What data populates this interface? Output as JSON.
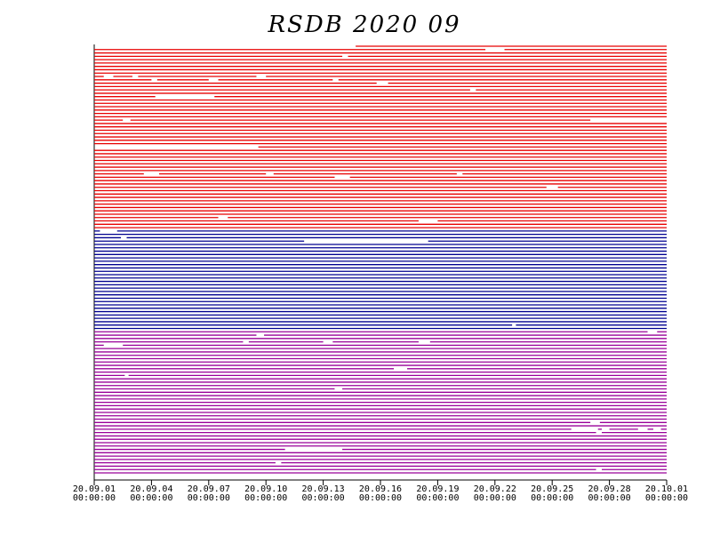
{
  "chart_data": {
    "type": "timeline",
    "title": "RSDB  2020  09",
    "xlim": [
      0,
      30
    ],
    "xticks": [
      {
        "value": 0,
        "label": [
          "20.09.01",
          "00:00:00"
        ]
      },
      {
        "value": 3,
        "label": [
          "20.09.04",
          "00:00:00"
        ]
      },
      {
        "value": 6,
        "label": [
          "20.09.07",
          "00:00:00"
        ]
      },
      {
        "value": 9,
        "label": [
          "20.09.10",
          "00:00:00"
        ]
      },
      {
        "value": 12,
        "label": [
          "20.09.13",
          "00:00:00"
        ]
      },
      {
        "value": 15,
        "label": [
          "20.09.16",
          "00:00:00"
        ]
      },
      {
        "value": 18,
        "label": [
          "20.09.19",
          "00:00:00"
        ]
      },
      {
        "value": 21,
        "label": [
          "20.09.22",
          "00:00:00"
        ]
      },
      {
        "value": 24,
        "label": [
          "20.09.25",
          "00:00:00"
        ]
      },
      {
        "value": 27,
        "label": [
          "20.09.28",
          "00:00:00"
        ]
      },
      {
        "value": 30,
        "label": [
          "20.10.01",
          "00:00:00"
        ]
      }
    ],
    "series": [
      {
        "color": "#e80000",
        "rows": [
          [
            [
              13.7,
              30
            ]
          ],
          [
            [
              0,
              20.5
            ],
            [
              21.5,
              30
            ]
          ],
          [
            [
              0,
              30
            ]
          ],
          [
            [
              0,
              13
            ],
            [
              13.3,
              30
            ]
          ],
          [
            [
              0,
              30
            ]
          ],
          [
            [
              0,
              30
            ]
          ],
          [
            [
              0,
              30
            ]
          ],
          [
            [
              0,
              30
            ]
          ],
          [
            [
              0,
              30
            ]
          ],
          [
            [
              0,
              0.5
            ],
            [
              1,
              2
            ],
            [
              2.3,
              8.5
            ],
            [
              9,
              30
            ]
          ],
          [
            [
              0,
              3
            ],
            [
              3.3,
              6
            ],
            [
              6.5,
              12.5
            ],
            [
              12.8,
              30
            ]
          ],
          [
            [
              0,
              14.8
            ],
            [
              15.4,
              30
            ]
          ],
          [
            [
              0,
              30
            ]
          ],
          [
            [
              0,
              19.7
            ],
            [
              20,
              30
            ]
          ],
          [
            [
              0,
              30
            ]
          ],
          [
            [
              0,
              3.2
            ],
            [
              6.3,
              30
            ]
          ],
          [
            [
              0,
              30
            ]
          ],
          [
            [
              0,
              30
            ]
          ],
          [
            [
              0,
              30
            ]
          ],
          [
            [
              0,
              30
            ]
          ],
          [
            [
              0,
              30
            ]
          ],
          [
            [
              0,
              30
            ]
          ],
          [
            [
              0,
              1.5
            ],
            [
              1.9,
              26
            ]
          ],
          [
            [
              0,
              30
            ]
          ],
          [
            [
              0,
              30
            ]
          ],
          [
            [
              0,
              30
            ]
          ],
          [
            [
              0,
              30
            ]
          ],
          [
            [
              0,
              30
            ]
          ],
          [
            [
              0,
              30
            ]
          ],
          [
            [
              0,
              30
            ]
          ],
          [
            [
              8.6,
              30
            ]
          ],
          [
            [
              0,
              30
            ]
          ],
          [
            [
              0,
              30
            ]
          ],
          [
            [
              0,
              30
            ]
          ],
          [
            [
              0,
              30
            ]
          ],
          [
            [
              0,
              30
            ]
          ],
          [
            [
              0,
              30
            ]
          ],
          [
            [
              0,
              30
            ]
          ],
          [
            [
              0,
              2.6
            ],
            [
              3.4,
              9
            ],
            [
              9.4,
              19
            ],
            [
              19.3,
              30
            ]
          ],
          [
            [
              0,
              12.6
            ],
            [
              13.4,
              30
            ]
          ],
          [
            [
              0,
              30
            ]
          ],
          [
            [
              0,
              30
            ]
          ],
          [
            [
              0,
              23.7
            ],
            [
              24.3,
              30
            ]
          ],
          [
            [
              0,
              30
            ]
          ],
          [
            [
              0,
              30
            ]
          ],
          [
            [
              0,
              30
            ]
          ],
          [
            [
              0,
              30
            ]
          ],
          [
            [
              0,
              30
            ]
          ],
          [
            [
              0,
              30
            ]
          ],
          [
            [
              0,
              30
            ]
          ],
          [
            [
              0,
              30
            ]
          ],
          [
            [
              0,
              6.5
            ],
            [
              7,
              30
            ]
          ],
          [
            [
              0,
              17
            ],
            [
              18,
              30
            ]
          ],
          [
            [
              0,
              30
            ]
          ],
          [
            [
              0,
              30
            ]
          ]
        ]
      },
      {
        "color": "#000090",
        "rows": [
          [
            [
              0,
              0.3
            ],
            [
              1.2,
              30
            ]
          ],
          [
            [
              0,
              30
            ]
          ],
          [
            [
              0,
              1.4
            ],
            [
              1.7,
              30
            ]
          ],
          [
            [
              0,
              11
            ],
            [
              17.5,
              30
            ]
          ],
          [
            [
              0,
              30
            ]
          ],
          [
            [
              0,
              30
            ]
          ],
          [
            [
              0,
              30
            ]
          ],
          [
            [
              0,
              30
            ]
          ],
          [
            [
              0,
              30
            ]
          ],
          [
            [
              0,
              30
            ]
          ],
          [
            [
              0,
              30
            ]
          ],
          [
            [
              0,
              30
            ]
          ],
          [
            [
              0,
              30
            ]
          ],
          [
            [
              0,
              30
            ]
          ],
          [
            [
              0,
              30
            ]
          ],
          [
            [
              0,
              30
            ]
          ],
          [
            [
              0,
              30
            ]
          ],
          [
            [
              0,
              30
            ]
          ],
          [
            [
              0,
              30
            ]
          ],
          [
            [
              0,
              30
            ]
          ],
          [
            [
              0,
              30
            ]
          ],
          [
            [
              0,
              30
            ]
          ],
          [
            [
              0,
              30
            ]
          ],
          [
            [
              0,
              30
            ]
          ],
          [
            [
              0,
              30
            ]
          ],
          [
            [
              0,
              30
            ]
          ],
          [
            [
              0,
              30
            ]
          ],
          [
            [
              0,
              30
            ]
          ],
          [
            [
              0,
              21.9
            ],
            [
              22.1,
              30
            ]
          ],
          [
            [
              0,
              30
            ]
          ]
        ]
      },
      {
        "color": "#990099",
        "rows": [
          [
            [
              0,
              29
            ],
            [
              29.5,
              30
            ]
          ],
          [
            [
              0,
              8.5
            ],
            [
              8.9,
              30
            ]
          ],
          [
            [
              0,
              30
            ]
          ],
          [
            [
              0,
              7.8
            ],
            [
              8.1,
              12
            ],
            [
              12.5,
              17
            ],
            [
              17.6,
              30
            ]
          ],
          [
            [
              0,
              0.5
            ],
            [
              1.5,
              30
            ]
          ],
          [
            [
              0,
              30
            ]
          ],
          [
            [
              0,
              30
            ]
          ],
          [
            [
              0,
              30
            ]
          ],
          [
            [
              0,
              30
            ]
          ],
          [
            [
              0,
              30
            ]
          ],
          [
            [
              0,
              30
            ]
          ],
          [
            [
              0,
              15.7
            ],
            [
              16.4,
              30
            ]
          ],
          [
            [
              0,
              30
            ]
          ],
          [
            [
              0,
              1.6
            ],
            [
              1.8,
              30
            ]
          ],
          [
            [
              0,
              30
            ]
          ],
          [
            [
              0,
              30
            ]
          ],
          [
            [
              0,
              30
            ]
          ],
          [
            [
              0,
              12.6
            ],
            [
              13,
              30
            ]
          ],
          [
            [
              0,
              30
            ]
          ],
          [
            [
              0,
              30
            ]
          ],
          [
            [
              0,
              30
            ]
          ],
          [
            [
              0,
              30
            ]
          ],
          [
            [
              0,
              30
            ]
          ],
          [
            [
              0,
              30
            ]
          ],
          [
            [
              0,
              30
            ]
          ],
          [
            [
              0,
              30
            ]
          ],
          [
            [
              0,
              30
            ]
          ],
          [
            [
              0,
              26
            ],
            [
              26.5,
              30
            ]
          ],
          [
            [
              0,
              30
            ]
          ],
          [
            [
              0,
              25
            ],
            [
              26.4,
              26.6
            ],
            [
              27,
              28.5
            ],
            [
              29,
              29.3
            ],
            [
              29.7,
              30
            ]
          ],
          [
            [
              0,
              26.3
            ],
            [
              26.6,
              30
            ]
          ],
          [
            [
              0,
              30
            ]
          ],
          [
            [
              0,
              30
            ]
          ],
          [
            [
              0,
              30
            ]
          ],
          [
            [
              0,
              30
            ]
          ],
          [
            [
              0,
              10
            ],
            [
              13,
              30
            ]
          ],
          [
            [
              0,
              30
            ]
          ],
          [
            [
              0,
              30
            ]
          ],
          [
            [
              0,
              30
            ]
          ],
          [
            [
              0,
              9.5
            ],
            [
              9.8,
              30
            ]
          ],
          [
            [
              0,
              30
            ]
          ],
          [
            [
              0,
              26.3
            ],
            [
              26.6,
              30
            ]
          ],
          [
            [
              0,
              30
            ]
          ]
        ]
      }
    ]
  }
}
